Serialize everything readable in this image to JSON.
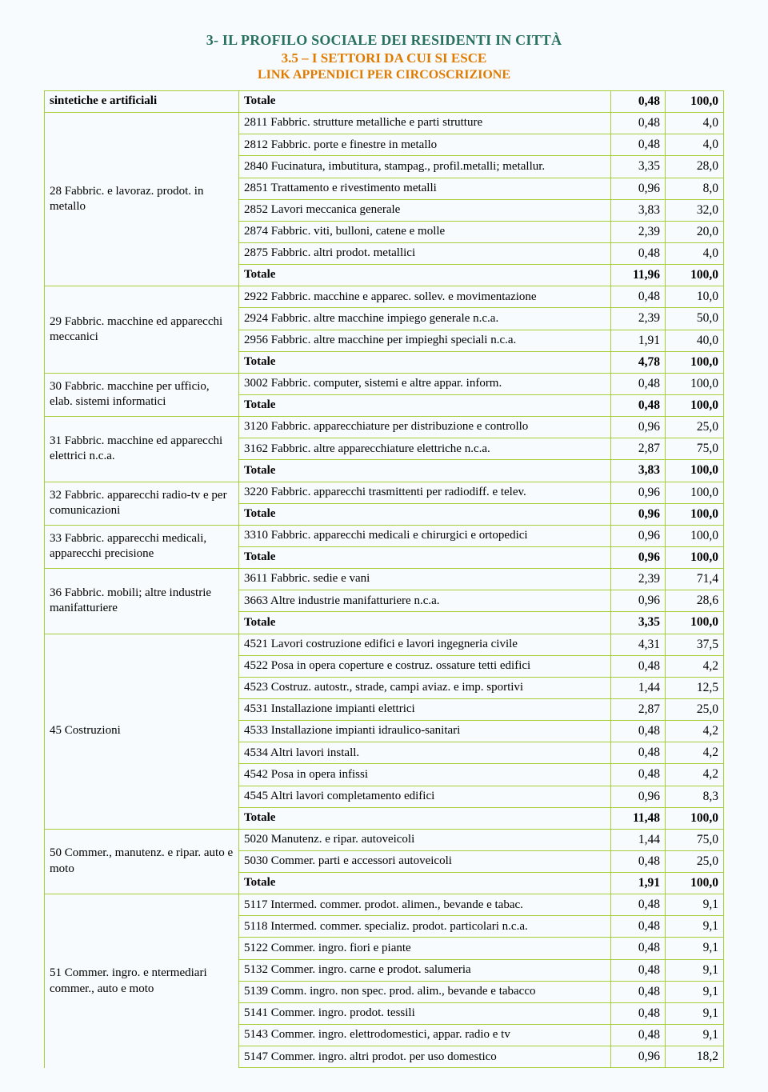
{
  "header": {
    "title1": "3- IL PROFILO SOCIALE DEI RESIDENTI IN CITTÀ",
    "title2": "3.5 – I SETTORI DA CUI SI ESCE",
    "title3": "LINK APPENDICI PER CIRCOSCRIZIONE"
  },
  "labels": {
    "totale": "Totale"
  },
  "groups": [
    {
      "cat": "sintetiche e artificiali",
      "rows": [
        {
          "desc": "Totale",
          "v1": "0,48",
          "v2": "100,0",
          "bold": true
        }
      ],
      "borderBottom": true
    },
    {
      "cat": "28  Fabbric. e lavoraz. prodot. in metallo",
      "rows": [
        {
          "desc": "2811  Fabbric. strutture metalliche e parti strutture",
          "v1": "0,48",
          "v2": "4,0"
        },
        {
          "desc": "2812  Fabbric. porte e finestre in metallo",
          "v1": "0,48",
          "v2": "4,0"
        },
        {
          "desc": "2840  Fucinatura, imbutitura, stampag., profil.metalli; metallur.",
          "v1": "3,35",
          "v2": "28,0"
        },
        {
          "desc": "2851  Trattamento e rivestimento metalli",
          "v1": "0,96",
          "v2": "8,0"
        },
        {
          "desc": "2852  Lavori meccanica generale",
          "v1": "3,83",
          "v2": "32,0"
        },
        {
          "desc": "2874  Fabbric. viti, bulloni, catene e molle",
          "v1": "2,39",
          "v2": "20,0"
        },
        {
          "desc": "2875  Fabbric. altri prodot. metallici",
          "v1": "0,48",
          "v2": "4,0"
        },
        {
          "desc": "Totale",
          "v1": "11,96",
          "v2": "100,0",
          "bold": true
        }
      ]
    },
    {
      "cat": "29  Fabbric. macchine ed apparecchi meccanici",
      "rows": [
        {
          "desc": "2922  Fabbric. macchine e apparec. sollev. e movimentazione",
          "v1": "0,48",
          "v2": "10,0"
        },
        {
          "desc": "2924  Fabbric. altre macchine impiego generale n.c.a.",
          "v1": "2,39",
          "v2": "50,0"
        },
        {
          "desc": "2956  Fabbric. altre macchine per impieghi speciali n.c.a.",
          "v1": "1,91",
          "v2": "40,0"
        },
        {
          "desc": "Totale",
          "v1": "4,78",
          "v2": "100,0",
          "bold": true
        }
      ]
    },
    {
      "cat": "30  Fabbric. macchine per ufficio, elab. sistemi informatici",
      "rows": [
        {
          "desc": "3002  Fabbric. computer, sistemi e altre appar. inform.",
          "v1": "0,48",
          "v2": "100,0"
        },
        {
          "desc": "Totale",
          "v1": "0,48",
          "v2": "100,0",
          "bold": true
        }
      ]
    },
    {
      "cat": "31  Fabbric. macchine ed apparecchi elettrici n.c.a.",
      "rows": [
        {
          "desc": "3120  Fabbric. apparecchiature per distribuzione e controllo",
          "v1": "0,96",
          "v2": "25,0"
        },
        {
          "desc": "3162  Fabbric. altre apparecchiature elettriche n.c.a.",
          "v1": "2,87",
          "v2": "75,0"
        },
        {
          "desc": "Totale",
          "v1": "3,83",
          "v2": "100,0",
          "bold": true
        }
      ]
    },
    {
      "cat": "32  Fabbric. apparecchi radio-tv e per comunicazioni",
      "rows": [
        {
          "desc": "3220  Fabbric. apparecchi trasmittenti per radiodiff. e telev.",
          "v1": "0,96",
          "v2": "100,0"
        },
        {
          "desc": "Totale",
          "v1": "0,96",
          "v2": "100,0",
          "bold": true
        }
      ]
    },
    {
      "cat": "33  Fabbric. apparecchi medicali, apparecchi precisione",
      "rows": [
        {
          "desc": "3310  Fabbric. apparecchi medicali e chirurgici e ortopedici",
          "v1": "0,96",
          "v2": "100,0"
        },
        {
          "desc": "Totale",
          "v1": "0,96",
          "v2": "100,0",
          "bold": true
        }
      ]
    },
    {
      "cat": "36  Fabbric. mobili; altre industrie manifatturiere",
      "rows": [
        {
          "desc": "3611  Fabbric. sedie e vani",
          "v1": "2,39",
          "v2": "71,4"
        },
        {
          "desc": "3663  Altre industrie manifatturiere n.c.a.",
          "v1": "0,96",
          "v2": "28,6"
        },
        {
          "desc": "Totale",
          "v1": "3,35",
          "v2": "100,0",
          "bold": true
        }
      ]
    },
    {
      "cat": "45  Costruzioni",
      "rows": [
        {
          "desc": "4521  Lavori costruzione edifici e lavori ingegneria civile",
          "v1": "4,31",
          "v2": "37,5"
        },
        {
          "desc": "4522  Posa in opera coperture e costruz. ossature tetti edifici",
          "v1": "0,48",
          "v2": "4,2"
        },
        {
          "desc": "4523  Costruz. autostr., strade, campi aviaz. e imp. sportivi",
          "v1": "1,44",
          "v2": "12,5"
        },
        {
          "desc": "4531  Installazione impianti elettrici",
          "v1": "2,87",
          "v2": "25,0"
        },
        {
          "desc": "4533  Installazione impianti idraulico-sanitari",
          "v1": "0,48",
          "v2": "4,2"
        },
        {
          "desc": "4534  Altri lavori install.",
          "v1": "0,48",
          "v2": "4,2"
        },
        {
          "desc": "4542  Posa in opera infissi",
          "v1": "0,48",
          "v2": "4,2"
        },
        {
          "desc": "4545  Altri lavori completamento edifici",
          "v1": "0,96",
          "v2": "8,3"
        },
        {
          "desc": "Totale",
          "v1": "11,48",
          "v2": "100,0",
          "bold": true
        }
      ]
    },
    {
      "cat": "50  Commer., manutenz. e ripar. auto e moto",
      "rows": [
        {
          "desc": "5020  Manutenz. e ripar. autoveicoli",
          "v1": "1,44",
          "v2": "75,0"
        },
        {
          "desc": "5030  Commer. parti e accessori autoveicoli",
          "v1": "0,48",
          "v2": "25,0"
        },
        {
          "desc": "Totale",
          "v1": "1,91",
          "v2": "100,0",
          "bold": true
        }
      ]
    },
    {
      "cat": "51  Commer. ingro. e ntermediari commer., auto e moto",
      "rows": [
        {
          "desc": "5117  Intermed. commer. prodot. alimen., bevande e tabac.",
          "v1": "0,48",
          "v2": "9,1"
        },
        {
          "desc": "5118  Intermed. commer. specializ. prodot. particolari n.c.a.",
          "v1": "0,48",
          "v2": "9,1"
        },
        {
          "desc": "5122  Commer. ingro. fiori e piante",
          "v1": "0,48",
          "v2": "9,1"
        },
        {
          "desc": "5132  Commer. ingro. carne e prodot. salumeria",
          "v1": "0,48",
          "v2": "9,1"
        },
        {
          "desc": "5139  Comm. ingro. non spec. prod. alim., bevande e tabacco",
          "v1": "0,48",
          "v2": "9,1"
        },
        {
          "desc": "5141  Commer. ingro. prodot. tessili",
          "v1": "0,48",
          "v2": "9,1"
        },
        {
          "desc": "5143  Commer. ingro. elettrodomestici, appar. radio e tv",
          "v1": "0,48",
          "v2": "9,1"
        },
        {
          "desc": "5147  Commer. ingro. altri prodot. per uso domestico",
          "v1": "0,96",
          "v2": "18,2"
        }
      ],
      "open": true
    }
  ]
}
